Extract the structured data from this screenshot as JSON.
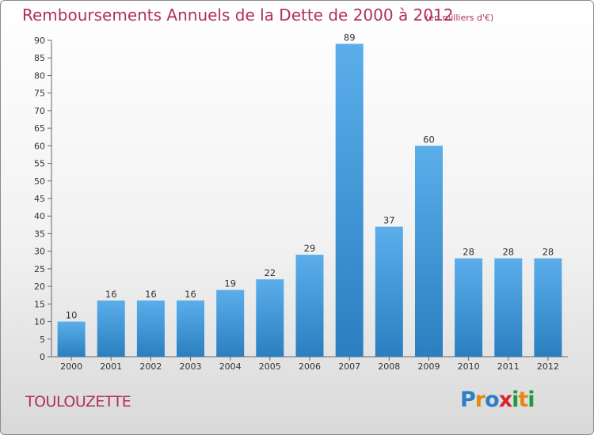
{
  "chart_data": {
    "type": "bar",
    "title": "Remboursements Annuels de la Dette de 2000 à 2012",
    "subtitle": "(en milliers d'€)",
    "categories": [
      "2000",
      "2001",
      "2002",
      "2003",
      "2004",
      "2005",
      "2006",
      "2007",
      "2008",
      "2009",
      "2010",
      "2011",
      "2012"
    ],
    "values": [
      10,
      16,
      16,
      16,
      19,
      22,
      29,
      89,
      37,
      60,
      28,
      28,
      28
    ],
    "ylim": [
      0,
      90
    ],
    "yticks": [
      0,
      5,
      10,
      15,
      20,
      25,
      30,
      35,
      40,
      45,
      50,
      55,
      60,
      65,
      70,
      75,
      80,
      85,
      90
    ],
    "bar_color_top": "#5baeea",
    "bar_color_bottom": "#2a7fc0",
    "grid": false,
    "legend": "none"
  },
  "commune": "TOULOUZETTE",
  "logo": {
    "letters": [
      "P",
      "r",
      "o",
      "x",
      "i",
      "t",
      "i"
    ],
    "colors": [
      "#2b7fc6",
      "#e08a16",
      "#2b7fc6",
      "#d7262b",
      "#1e9b3a",
      "#e08a16",
      "#1e9b3a"
    ]
  },
  "colors": {
    "title": "#b0305a",
    "axis": "#333333"
  }
}
